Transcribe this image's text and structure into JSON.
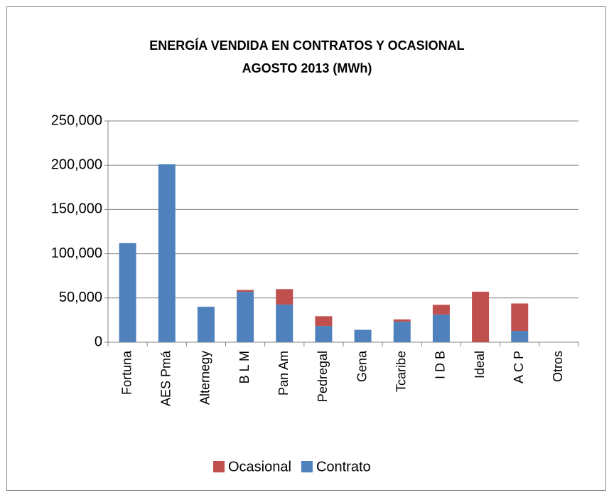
{
  "chart_data": {
    "type": "stacked_bar",
    "title": [
      "ENERGÍA VENDIDA EN CONTRATOS Y OCASIONAL",
      "AGOSTO  2013  (MWh)"
    ],
    "categories": [
      "Fortuna",
      "AES Pmá",
      "Alternegy",
      "B L M",
      "Pan Am",
      "Pedregal",
      "Gena",
      "Tcaribe",
      "I D B",
      "Ideal",
      "A C P",
      "Otros"
    ],
    "series": [
      {
        "name": "Contrato",
        "color": "#4f81bd",
        "values": [
          112000,
          201000,
          40000,
          57000,
          42500,
          18400,
          14000,
          23200,
          31200,
          0,
          12800,
          0
        ]
      },
      {
        "name": "Ocasional",
        "color": "#c0504d",
        "values": [
          0,
          0,
          0,
          2000,
          17500,
          11000,
          0,
          2500,
          11000,
          57000,
          31000,
          0
        ]
      }
    ],
    "ylim": [
      0,
      250000
    ],
    "yticks": [
      0,
      {
        "value": 50000,
        "label": "50,000"
      },
      {
        "value": 100000,
        "label": "100,000"
      },
      {
        "value": 150000,
        "label": "150,000"
      },
      {
        "value": 200000,
        "label": "200,000"
      },
      {
        "value": 250000,
        "label": "250,000"
      }
    ],
    "grid": true,
    "legend": "bottom"
  }
}
